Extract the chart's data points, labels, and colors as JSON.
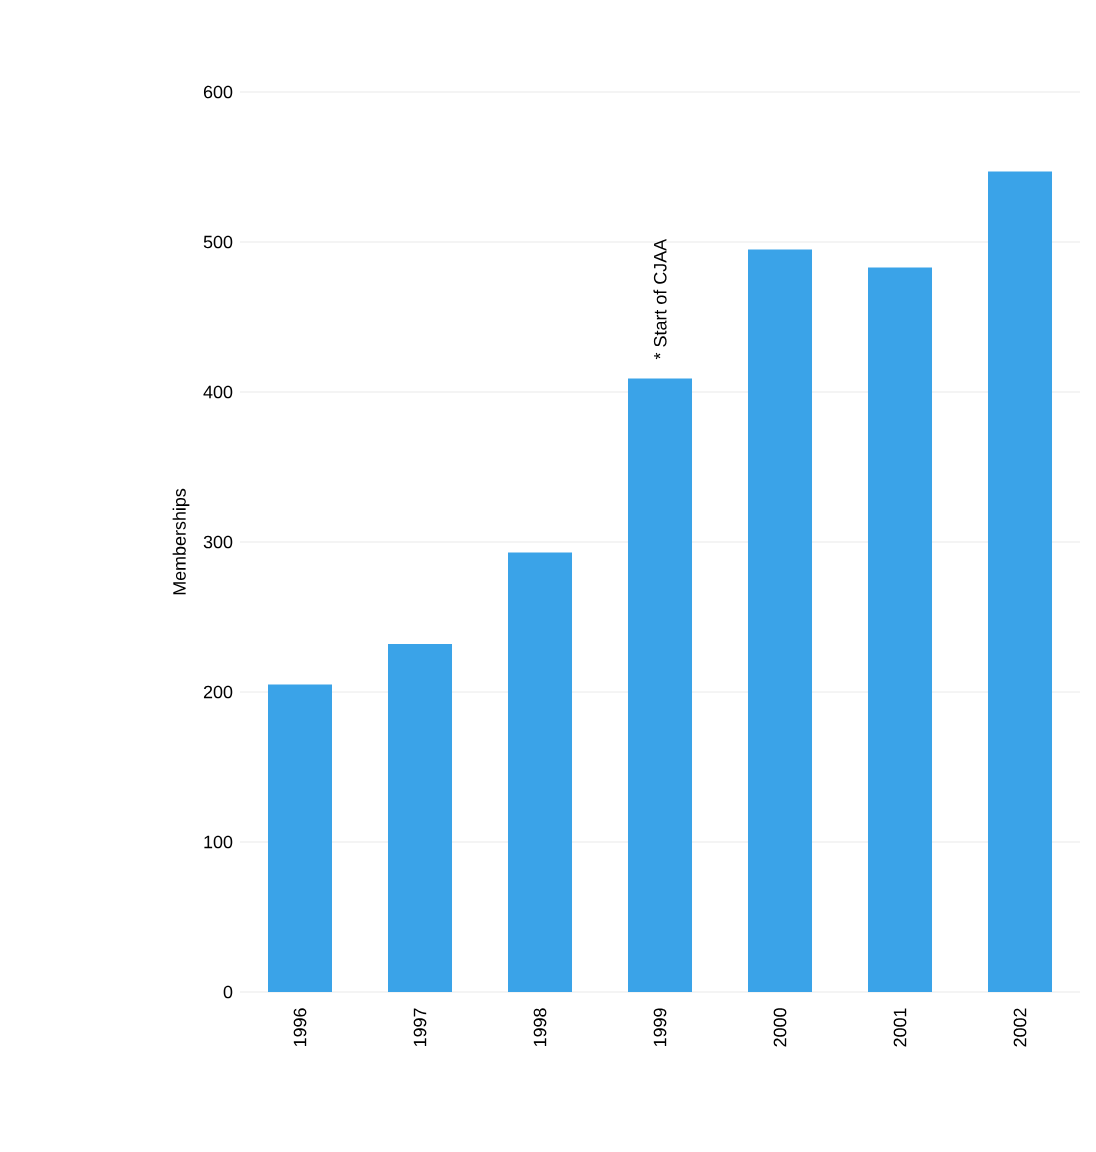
{
  "chart_data": {
    "type": "bar",
    "ylabel": "Memberships",
    "categories": [
      "1996",
      "1997",
      "1998",
      "1999",
      "2000",
      "2001",
      "2002"
    ],
    "values": [
      205,
      232,
      293,
      409,
      495,
      483,
      547
    ],
    "color": "#3aa3e8",
    "ylim": [
      0,
      600
    ],
    "yticks": [
      0,
      100,
      200,
      300,
      400,
      500,
      600
    ],
    "grid": "y",
    "annotations": [
      {
        "text": "* Start of CJAA",
        "x": "1999",
        "y": 409
      }
    ]
  }
}
